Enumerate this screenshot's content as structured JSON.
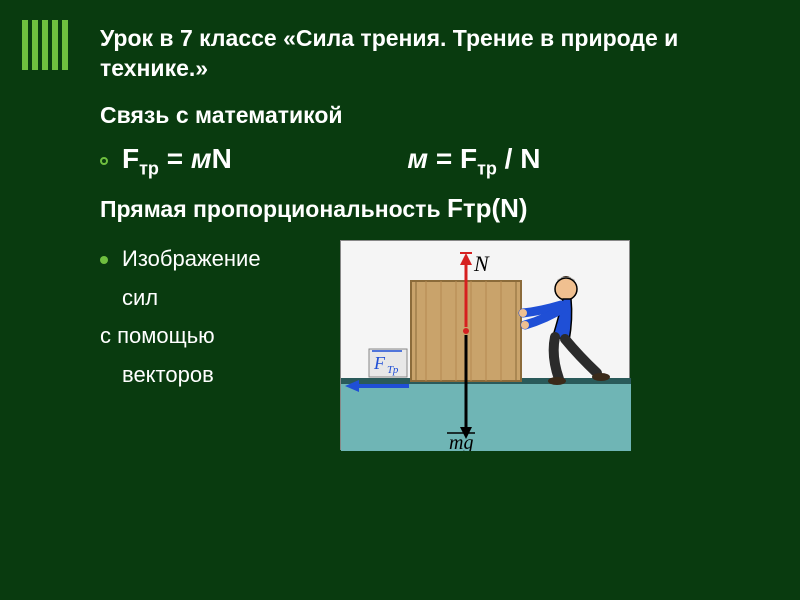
{
  "slide": {
    "title": "Урок в 7 классе «Сила трения. Трение в природе и технике.»",
    "subtitle": "Связь с математикой",
    "formula1_html": "F<span class='sub'>тр</span> = <span class='ital'>м</span>N",
    "formula2_html": "<span class='ital'>м</span> = F<span class='sub'>тр</span> / N",
    "proportionality_text": "Прямая пропорциональность ",
    "proportionality_fn_html": "F<span class='sub'>тр</span>(N)",
    "line_image": "Изображение",
    "line_forces": "сил",
    "line_help": "с помощью",
    "line_vectors": "векторов"
  },
  "diagram": {
    "ground_color": "#6fb5b5",
    "ground_dark": "#2a5a5a",
    "box_fill": "#c9a36b",
    "box_stroke": "#8b6b3a",
    "person_shirt": "#1f4fd6",
    "person_pants": "#2b2b2b",
    "person_skin": "#f0c090",
    "arrow_red": "#d62020",
    "arrow_blue": "#1f4fd6",
    "label_N": "N",
    "label_Ftr": "F",
    "label_Ftr_sub": "Тр",
    "label_mg": "mg"
  },
  "style": {
    "bg": "#093b0f",
    "accent": "#6fbf3f",
    "text": "#ffffff"
  }
}
